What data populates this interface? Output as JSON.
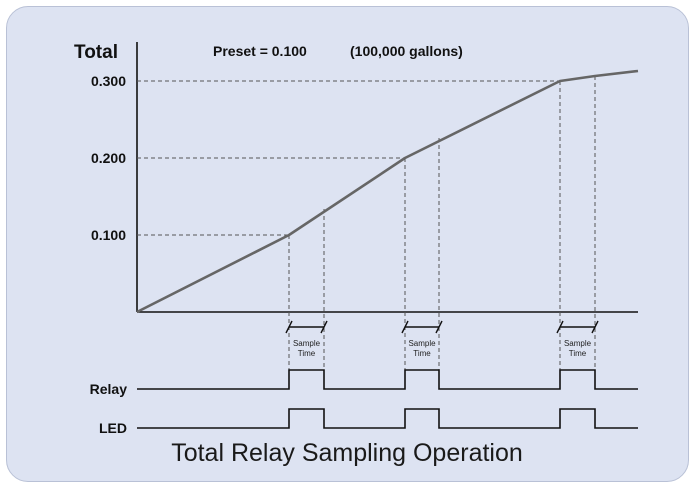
{
  "y_axis_title": "Total",
  "preset_text": "Preset = 0.100",
  "gallons_text": "(100,000 gallons)",
  "y_ticks": [
    "0.300",
    "0.200",
    "0.100"
  ],
  "sample_label_line1": "Sample",
  "sample_label_line2": "Time",
  "relay_label": "Relay",
  "led_label": "LED",
  "caption": "Total Relay Sampling Operation",
  "colors": {
    "background": "#dde3f2",
    "curve": "#666666",
    "axis": "#111111"
  }
}
